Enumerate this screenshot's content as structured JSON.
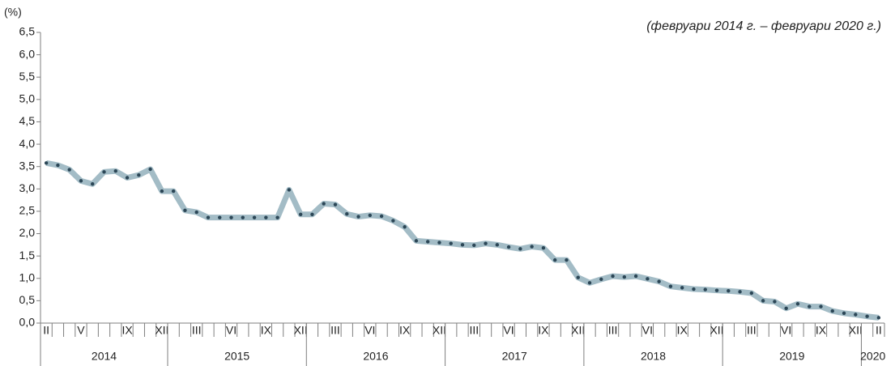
{
  "chart_data": {
    "type": "line",
    "subtitle": "(февруари 2014 г. – февруари 2020 г.)",
    "y_label": "(%)",
    "categories": [
      "II",
      null,
      null,
      "V",
      null,
      null,
      null,
      "IX",
      null,
      null,
      "XII",
      null,
      null,
      "III",
      null,
      null,
      "VI",
      null,
      null,
      "IX",
      null,
      null,
      "XII",
      null,
      null,
      "III",
      null,
      null,
      "VI",
      null,
      null,
      "IX",
      null,
      null,
      "XII",
      null,
      null,
      "III",
      null,
      null,
      "VI",
      null,
      null,
      "IX",
      null,
      null,
      "XII",
      null,
      null,
      "III",
      null,
      null,
      "VI",
      null,
      null,
      "IX",
      null,
      null,
      "XII",
      null,
      null,
      "III",
      null,
      null,
      "VI",
      null,
      null,
      "IX",
      null,
      null,
      "XII",
      null,
      "II"
    ],
    "years": [
      "2014",
      "2015",
      "2016",
      "2017",
      "2018",
      "2019",
      "2020"
    ],
    "series": [
      {
        "color": "#a3bcc6",
        "marker_color": "#2b4656",
        "values": [
          3.58,
          3.53,
          3.43,
          3.18,
          3.11,
          3.38,
          3.4,
          3.25,
          3.31,
          3.44,
          2.95,
          2.95,
          2.52,
          2.48,
          2.36,
          2.36,
          2.36,
          2.36,
          2.36,
          2.36,
          2.36,
          2.98,
          2.43,
          2.43,
          2.67,
          2.65,
          2.44,
          2.38,
          2.41,
          2.39,
          2.29,
          2.15,
          1.84,
          1.82,
          1.8,
          1.78,
          1.75,
          1.74,
          1.78,
          1.75,
          1.7,
          1.66,
          1.71,
          1.68,
          1.41,
          1.41,
          1.02,
          0.9,
          0.98,
          1.05,
          1.03,
          1.05,
          0.99,
          0.93,
          0.82,
          0.79,
          0.76,
          0.75,
          0.73,
          0.72,
          0.7,
          0.67,
          0.5,
          0.48,
          0.33,
          0.43,
          0.37,
          0.37,
          0.27,
          0.22,
          0.19,
          0.15,
          0.12
        ]
      }
    ],
    "ylim": [
      0,
      6.5
    ],
    "yticks": [
      {
        "value": 0,
        "label": "0,0"
      },
      {
        "value": 0.5,
        "label": "0,5"
      },
      {
        "value": 1,
        "label": "1,0"
      },
      {
        "value": 1.5,
        "label": "1,5"
      },
      {
        "value": 2,
        "label": "2,0"
      },
      {
        "value": 2.5,
        "label": "2,5"
      },
      {
        "value": 3,
        "label": "3,0"
      },
      {
        "value": 3.5,
        "label": "3,5"
      },
      {
        "value": 4,
        "label": "4,0"
      },
      {
        "value": 4.5,
        "label": "4,5"
      },
      {
        "value": 5,
        "label": "5,0"
      },
      {
        "value": 5.5,
        "label": "5,5"
      },
      {
        "value": 6,
        "label": "6,0"
      },
      {
        "value": 6.5,
        "label": "6,5"
      }
    ],
    "grid": false
  }
}
